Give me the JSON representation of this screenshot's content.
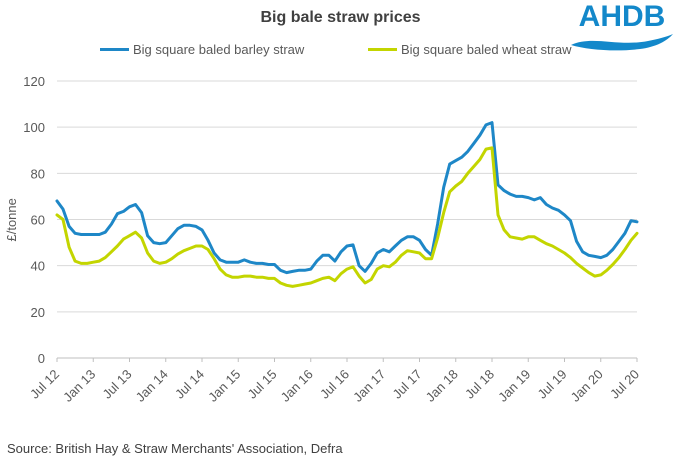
{
  "header": {
    "title": "Big bale straw prices"
  },
  "logo": {
    "text": "AHDB",
    "color": "#1388ca"
  },
  "source": {
    "text": "Source: British Hay & Straw Merchants' Association, Defra"
  },
  "colors": {
    "barley_line": "#1e87c7",
    "wheat_line": "#c3d500",
    "grid": "#d9d9d9",
    "axis_line": "#bfbfbf",
    "axis_text": "#595959",
    "title_text": "#404040"
  },
  "chart_data": {
    "type": "line",
    "title": "Big bale straw prices",
    "xlabel": "",
    "ylabel": "£/tonne",
    "ylim": [
      0,
      120
    ],
    "ytick_step": 20,
    "grid": "horizontal",
    "legend_position": "top",
    "x_unit": "monthly",
    "x_range": "Jul 2012 - Jul 2020",
    "xtick_every": 6,
    "xtick_labels": [
      "Jul 12",
      "Jan 13",
      "Jul 13",
      "Jan 14",
      "Jul 14",
      "Jan 15",
      "Jul 15",
      "Jan 16",
      "Jul 16",
      "Jan 17",
      "Jul 17",
      "Jan 18",
      "Jul 18",
      "Jan 19",
      "Jul 19",
      "Jan 20",
      "Jul 20"
    ],
    "series": [
      {
        "name": "Big square baled barley straw",
        "color": "#1e87c7",
        "values": [
          68,
          64.5,
          57,
          54,
          53.5,
          53.5,
          53.5,
          53.5,
          54.5,
          58,
          62.5,
          63.5,
          65.5,
          66.5,
          63,
          53,
          50,
          49.5,
          50,
          53,
          56,
          57.5,
          57.5,
          57,
          55.5,
          51,
          45.5,
          42.5,
          41.5,
          41.5,
          41.5,
          42.5,
          41.5,
          41,
          41,
          40.5,
          40.5,
          38,
          37,
          37.5,
          38,
          38,
          38.5,
          42,
          44.5,
          44.5,
          42,
          46,
          48.5,
          49,
          40,
          37.5,
          41,
          45.5,
          47,
          46,
          48.5,
          51,
          52.5,
          52.5,
          51,
          47,
          44.5,
          58,
          74,
          84,
          85.5,
          87,
          89.5,
          93,
          96.5,
          101,
          102,
          75,
          72.5,
          71,
          70,
          70,
          69.5,
          68.5,
          69.5,
          66.5,
          65,
          64,
          62,
          59.5,
          50.5,
          46,
          44.5,
          44,
          43.5,
          44.5,
          47,
          50.5,
          54,
          59.5,
          59
        ]
      },
      {
        "name": "Big square baled wheat straw",
        "color": "#c3d500",
        "values": [
          62,
          60,
          48,
          42,
          41,
          41,
          41.5,
          42,
          43.5,
          46,
          48.5,
          51.5,
          53,
          54.5,
          52,
          45.5,
          42,
          41,
          41.5,
          43,
          45,
          46.5,
          47.5,
          48.5,
          48.5,
          47,
          43,
          38.5,
          36,
          35,
          35,
          35.5,
          35.5,
          35,
          35,
          34.5,
          34.5,
          32.5,
          31.5,
          31,
          31.5,
          32,
          32.5,
          33.5,
          34.5,
          35,
          33.5,
          36.5,
          38.5,
          39.5,
          35.5,
          32.5,
          34,
          38.5,
          40,
          39.5,
          41.5,
          44.5,
          46.5,
          46,
          45.5,
          43,
          43,
          52,
          63,
          72,
          74.5,
          76.5,
          80,
          83,
          86,
          90.5,
          91,
          62,
          55.5,
          52.5,
          52,
          51.5,
          52.5,
          52.5,
          51,
          49.5,
          48.5,
          47,
          45.5,
          43.5,
          41,
          39,
          37,
          35.5,
          36,
          38,
          40.5,
          43.5,
          47,
          51,
          54
        ]
      }
    ]
  }
}
